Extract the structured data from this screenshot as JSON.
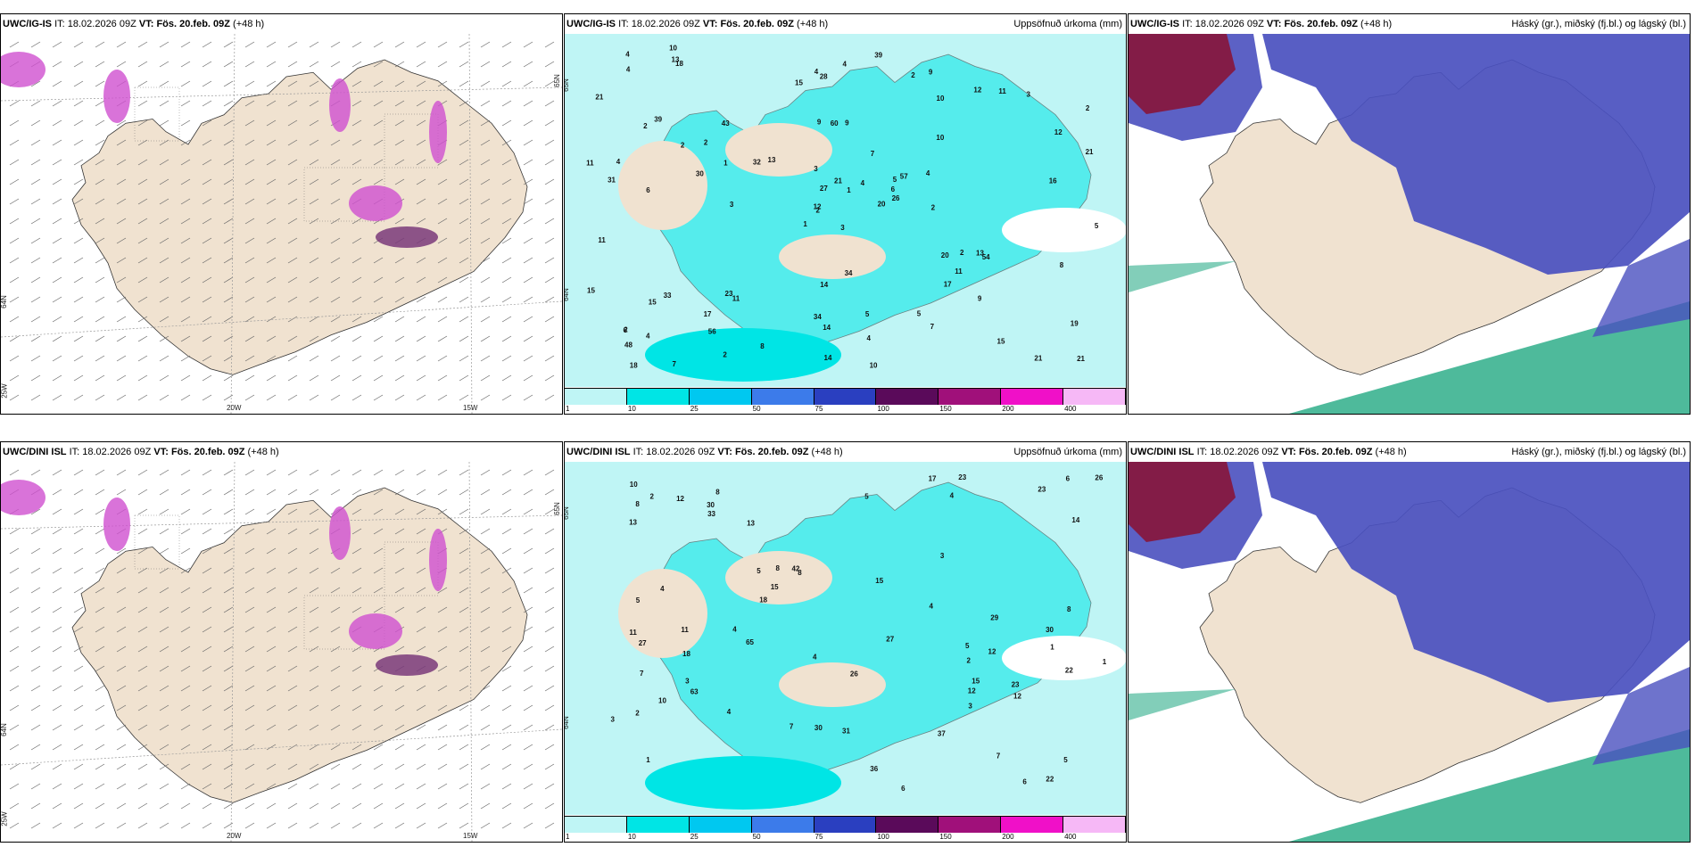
{
  "panels": [
    {
      "id": "r1c1",
      "model": "UWC/IG-IS",
      "it_label": "IT:",
      "it": "18.02.2026 09Z",
      "vt_label": "VT:",
      "vt": "Fös. 20.feb. 09Z",
      "lead": "(+48 h)",
      "right": "",
      "type": "wind"
    },
    {
      "id": "r1c2",
      "model": "UWC/IG-IS",
      "it_label": "IT:",
      "it": "18.02.2026 09Z",
      "vt_label": "VT:",
      "vt": "Fös. 20.feb. 09Z",
      "lead": "(+48 h)",
      "right": "Uppsöfnuð úrkoma (mm)",
      "type": "precip"
    },
    {
      "id": "r1c3",
      "model": "UWC/IG-IS",
      "it_label": "IT:",
      "it": "18.02.2026 09Z",
      "vt_label": "VT:",
      "vt": "Fös. 20.feb. 09Z",
      "lead": "(+48 h)",
      "right": "Háský (gr.), miðský (fj.bl.) og lágský (bl.)",
      "type": "cloud"
    },
    {
      "id": "r2c1",
      "model": "UWC/DINI ISL",
      "it_label": "IT:",
      "it": "18.02.2026 09Z",
      "vt_label": "VT:",
      "vt": "Fös. 20.feb. 09Z",
      "lead": "(+48 h)",
      "right": "",
      "type": "wind"
    },
    {
      "id": "r2c2",
      "model": "UWC/DINI ISL",
      "it_label": "IT:",
      "it": "18.02.2026 09Z",
      "vt_label": "VT:",
      "vt": "Fös. 20.feb. 09Z",
      "lead": "(+48 h)",
      "right": "Uppsöfnuð úrkoma (mm)",
      "type": "precip"
    },
    {
      "id": "r2c3",
      "model": "UWC/DINI ISL",
      "it_label": "IT:",
      "it": "18.02.2026 09Z",
      "vt_label": "VT:",
      "vt": "Fös. 20.feb. 09Z",
      "lead": "(+48 h)",
      "right": "Háský (gr.), miðský (fj.bl.) og lágský (bl.)",
      "type": "cloud"
    }
  ],
  "wind_axis": {
    "lon": [
      "25W",
      "20W",
      "15W"
    ],
    "lat": [
      "64N",
      "65N"
    ]
  },
  "precip_colorbar": {
    "ticks": [
      "1",
      "10",
      "25",
      "50",
      "75",
      "100",
      "150",
      "200",
      "400"
    ],
    "colors": [
      "#bff5f5",
      "#00e5e5",
      "#00c8f0",
      "#3c7bea",
      "#2a3fc0",
      "#5a0a5a",
      "#a0107a",
      "#f010c8",
      "#f6b8f6"
    ]
  },
  "precip_numbers_top": [
    "3",
    "2",
    "2",
    "2",
    "5",
    "11",
    "9",
    "9",
    "10",
    "20",
    "18",
    "21",
    "6",
    "2",
    "1",
    "10",
    "7",
    "9",
    "7",
    "33",
    "13",
    "48",
    "56",
    "60",
    "57",
    "54",
    "39",
    "28",
    "31",
    "20",
    "21",
    "12",
    "34",
    "27",
    "43",
    "12",
    "23",
    "21",
    "19",
    "13",
    "39",
    "32",
    "30",
    "17",
    "2",
    "11",
    "6",
    "18",
    "14",
    "26",
    "15",
    "12",
    "21",
    "11",
    "7",
    "17",
    "13",
    "4",
    "5",
    "3",
    "4",
    "3",
    "4",
    "2",
    "11",
    "10",
    "2",
    "15",
    "21",
    "15",
    "14",
    "8",
    "2",
    "1",
    "6",
    "4",
    "2",
    "11",
    "3",
    "4",
    "4",
    "4",
    "2",
    "8",
    "14",
    "16",
    "34",
    "15",
    "10",
    "5",
    "4",
    "5",
    "4",
    "9",
    "1"
  ],
  "precip_numbers_bottom": [
    "2",
    "1",
    "1",
    "8",
    "8",
    "7",
    "2",
    "4",
    "5",
    "6",
    "13",
    "11",
    "8",
    "5",
    "7",
    "8",
    "26",
    "27",
    "42",
    "63",
    "26",
    "23",
    "18",
    "22",
    "17",
    "30",
    "15",
    "27",
    "33",
    "29",
    "36",
    "37",
    "15",
    "65",
    "30",
    "12",
    "12",
    "11",
    "31",
    "10",
    "14",
    "23",
    "22",
    "30",
    "23",
    "4",
    "3",
    "2",
    "4",
    "5",
    "1",
    "8",
    "6",
    "5",
    "3",
    "6",
    "3",
    "10",
    "18",
    "12",
    "12",
    "13",
    "15",
    "7",
    "5",
    "4",
    "4",
    "3",
    "4"
  ],
  "colors": {
    "land": "#f0e2d0",
    "sea_precip": "#bff5f5",
    "cloud_blue": "#4a50bf",
    "cloud_red": "#8a1030",
    "cloud_green": "#2fae8a",
    "wind_magenta": "#d050d0",
    "wind_purple": "#7a3a7a"
  }
}
